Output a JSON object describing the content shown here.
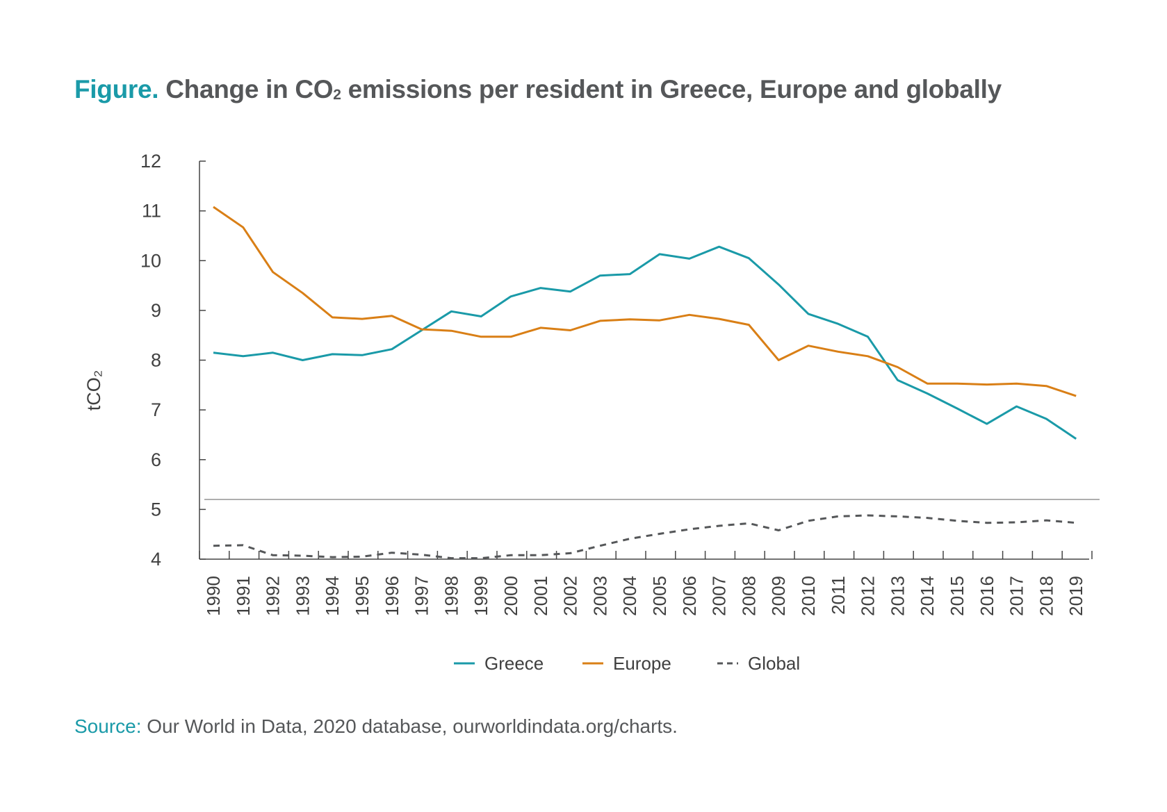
{
  "title": {
    "lead": "Figure.",
    "text_before_sub": "Change in CO",
    "sub": "2",
    "text_after_sub": " emissions per resident in Greece, Europe and globally"
  },
  "source": {
    "lead": "Source:",
    "text": "Our World in Data, 2020 database, ourworldindata.org/charts."
  },
  "colors": {
    "greece": "#1a9aa8",
    "europe": "#d97f16",
    "global": "#555759",
    "axis": "#444444"
  },
  "chart_data": {
    "type": "line",
    "ylabel": "tCO₂",
    "ylim": [
      4,
      12
    ],
    "yticks": [
      "4",
      "5",
      "6",
      "7",
      "8",
      "9",
      "10",
      "11",
      "12"
    ],
    "grid": false,
    "legend_position": "bottom-center",
    "x": [
      "1990",
      "1991",
      "1992",
      "1993",
      "1994",
      "1995",
      "1996",
      "1997",
      "1998",
      "1999",
      "2000",
      "2001",
      "2002",
      "2003",
      "2004",
      "2005",
      "2006",
      "2007",
      "2008",
      "2009",
      "2010",
      "2011",
      "2012",
      "2013",
      "2014",
      "2015",
      "2016",
      "2017",
      "2018",
      "2019"
    ],
    "series": [
      {
        "name": "Greece",
        "style": "solid",
        "values": [
          8.15,
          8.08,
          8.15,
          8.0,
          8.12,
          8.1,
          8.22,
          8.6,
          8.98,
          8.88,
          9.28,
          9.45,
          9.38,
          9.7,
          9.73,
          10.13,
          10.04,
          10.28,
          10.05,
          9.52,
          8.93,
          8.73,
          8.47,
          7.6,
          7.33,
          7.03,
          6.72,
          7.07,
          6.82,
          6.42
        ]
      },
      {
        "name": "Europe",
        "style": "solid",
        "values": [
          11.08,
          10.67,
          9.77,
          9.35,
          8.86,
          8.83,
          8.89,
          8.62,
          8.59,
          8.47,
          8.47,
          8.65,
          8.6,
          8.79,
          8.82,
          8.8,
          8.91,
          8.83,
          8.71,
          8.0,
          8.29,
          8.17,
          8.08,
          7.86,
          7.53,
          7.53,
          7.51,
          7.53,
          7.48,
          7.28
        ]
      },
      {
        "name": "Global",
        "style": "dashed",
        "values": [
          4.27,
          4.28,
          4.08,
          4.07,
          4.04,
          4.05,
          4.13,
          4.09,
          4.02,
          4.02,
          4.08,
          4.08,
          4.12,
          4.27,
          4.41,
          4.51,
          4.6,
          4.67,
          4.72,
          4.58,
          4.77,
          4.86,
          4.88,
          4.86,
          4.83,
          4.77,
          4.73,
          4.74,
          4.78,
          4.73
        ]
      }
    ],
    "reference_line": {
      "y": 5.2
    }
  }
}
